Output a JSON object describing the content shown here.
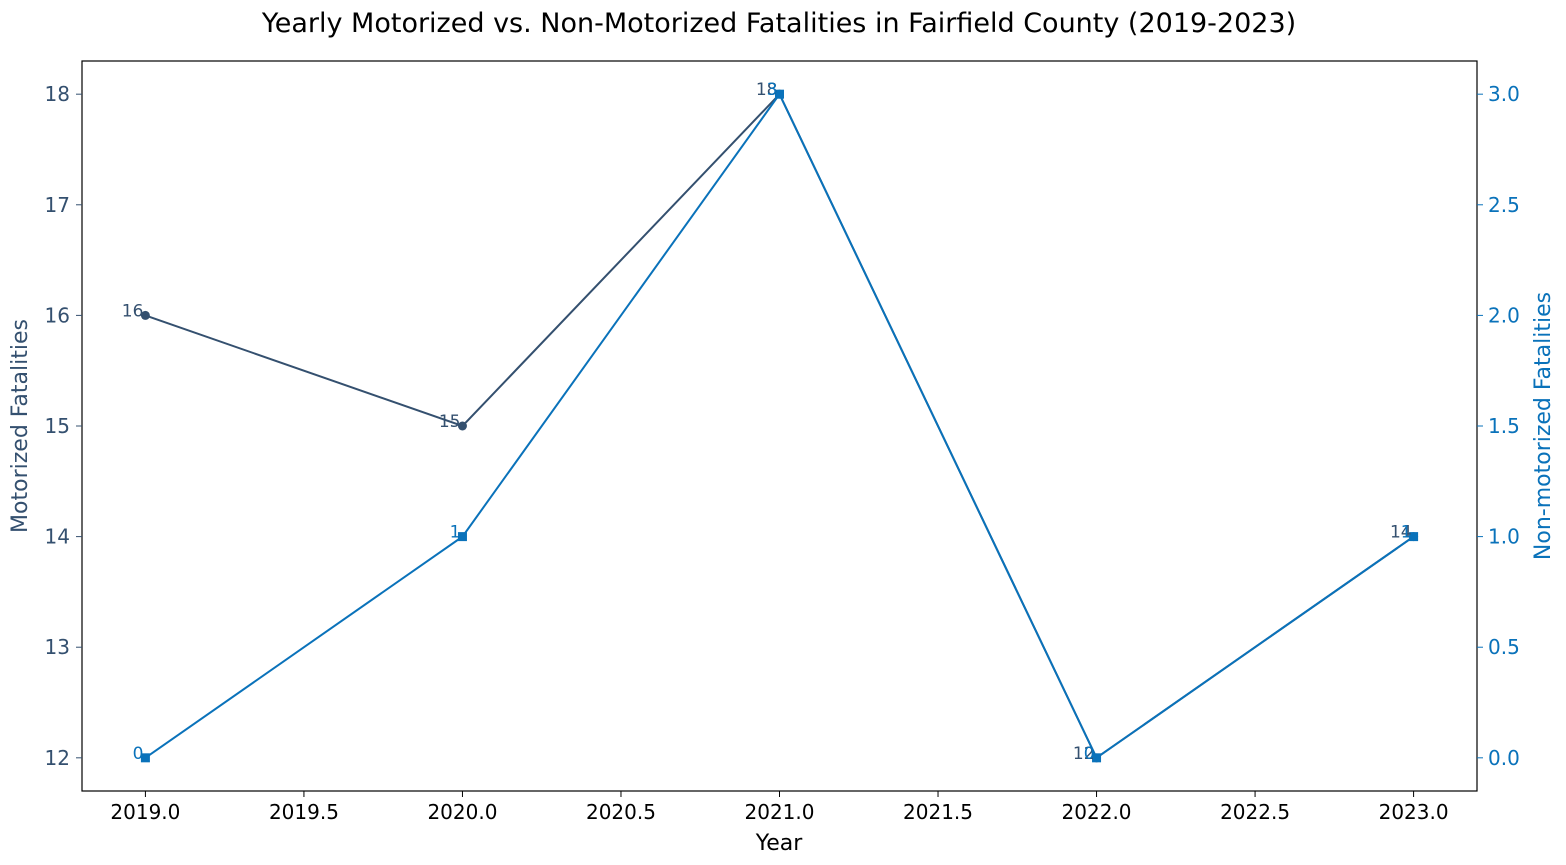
{
  "chart_data": {
    "type": "line",
    "title": "Yearly Motorized vs. Non-Motorized Fatalities in Fairfield County (2019-2023)",
    "xlabel": "Year",
    "ylabel_left": "Motorized Fatalities",
    "ylabel_right": "Non-motorized Fatalities",
    "x": [
      2019,
      2020,
      2021,
      2022,
      2023
    ],
    "xlim": [
      2018.8,
      2023.2
    ],
    "x_ticks": [
      "2019.0",
      "2019.5",
      "2020.0",
      "2020.5",
      "2021.0",
      "2021.5",
      "2022.0",
      "2022.5",
      "2023.0"
    ],
    "ylim_left": [
      11.7,
      18.3
    ],
    "y_ticks_left": [
      "12",
      "13",
      "14",
      "15",
      "16",
      "17",
      "18"
    ],
    "ylim_right": [
      -0.15,
      3.15
    ],
    "y_ticks_right": [
      "0.0",
      "0.5",
      "1.0",
      "1.5",
      "2.0",
      "2.5",
      "3.0"
    ],
    "grid": false,
    "series": [
      {
        "values": [
          16,
          15,
          18,
          12,
          14
        ],
        "labels": [
          "16",
          "15",
          "18",
          "12",
          "14"
        ],
        "axis": "left",
        "marker": "circle",
        "color": "#34506f"
      },
      {
        "values": [
          0,
          1,
          3,
          0,
          1
        ],
        "labels": [
          "0",
          "1",
          "3",
          "0",
          "1"
        ],
        "axis": "right",
        "marker": "square",
        "color": "#0a72ba"
      }
    ]
  }
}
